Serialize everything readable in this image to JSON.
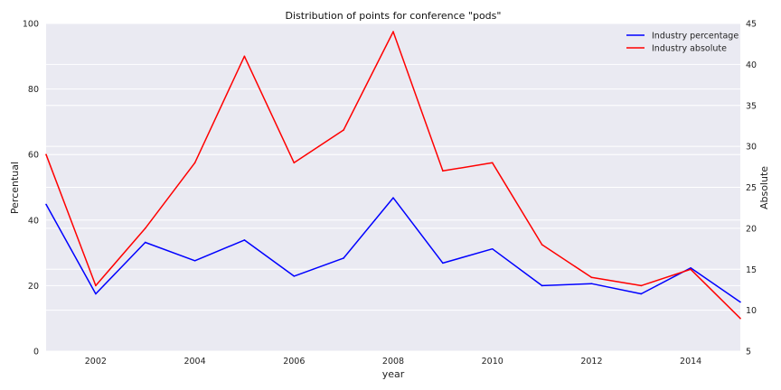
{
  "chart_data": {
    "type": "line",
    "title": "Distribution of points for conference \"pods\"",
    "xlabel": "year",
    "ylabel_left": "Percentual",
    "ylabel_right": "Absolute",
    "x": [
      2001,
      2002,
      2003,
      2004,
      2005,
      2006,
      2007,
      2008,
      2009,
      2010,
      2011,
      2012,
      2013,
      2014,
      2015
    ],
    "xlim": [
      2001,
      2015
    ],
    "x_ticks": [
      "2002",
      "2004",
      "2006",
      "2008",
      "2010",
      "2012",
      "2014"
    ],
    "ylim_left": [
      0,
      100
    ],
    "y_ticks_left": [
      "0",
      "20",
      "40",
      "60",
      "80",
      "100"
    ],
    "ylim_right": [
      5,
      45
    ],
    "y_ticks_right": [
      "5",
      "10",
      "15",
      "20",
      "25",
      "30",
      "35",
      "40",
      "45"
    ],
    "grid": true,
    "legend_position": "top-right",
    "series": [
      {
        "name": "Industry percentage",
        "axis": "left",
        "color": "#0000ff",
        "values": [
          44.8,
          17.5,
          33.2,
          27.6,
          33.9,
          22.9,
          28.4,
          46.8,
          26.9,
          31.2,
          20.0,
          20.6,
          17.5,
          25.4,
          15.0
        ]
      },
      {
        "name": "Industry absolute",
        "axis": "right",
        "color": "#ff0000",
        "values": [
          29,
          13,
          20,
          28,
          41,
          28,
          32,
          44,
          27,
          28,
          18,
          14,
          13,
          15,
          9
        ]
      }
    ]
  }
}
